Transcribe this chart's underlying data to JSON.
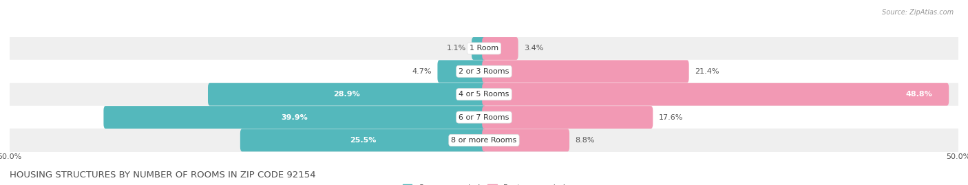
{
  "title": "Housing Structures by Number of Rooms in Zip Code 92154",
  "title_upper": "HOUSING STRUCTURES BY NUMBER OF ROOMS IN ZIP CODE 92154",
  "source": "Source: ZipAtlas.com",
  "categories": [
    "1 Room",
    "2 or 3 Rooms",
    "4 or 5 Rooms",
    "6 or 7 Rooms",
    "8 or more Rooms"
  ],
  "owner_pct": [
    1.1,
    4.7,
    28.9,
    39.9,
    25.5
  ],
  "renter_pct": [
    3.4,
    21.4,
    48.8,
    17.6,
    8.8
  ],
  "owner_color": "#54b8bc",
  "renter_color": "#f299b4",
  "row_bg_light": "#efefef",
  "row_bg_white": "#ffffff",
  "label_color": "#555555",
  "title_color": "#505050",
  "axis_max": 50.0,
  "bar_height": 0.58,
  "label_fontsize": 8.0,
  "title_fontsize": 9.5,
  "legend_fontsize": 8.0,
  "inside_label_color": "#ffffff",
  "outside_label_color": "#555555"
}
